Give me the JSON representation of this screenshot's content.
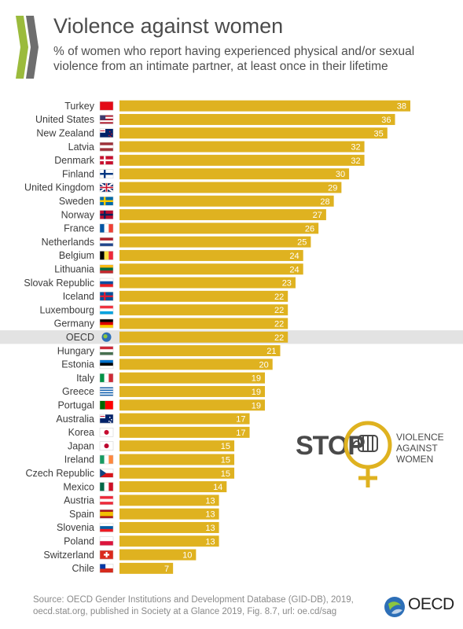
{
  "header": {
    "title": "Violence against women",
    "subtitle": "% of women who report having experienced physical and/or sexual violence from an intimate partner, at least once in their lifetime"
  },
  "badge": {
    "stop": "STOP",
    "line1": "VIOLENCE",
    "line2": "AGAINST",
    "line3": "WOMEN"
  },
  "footer": {
    "source_line1": "Source: OECD Gender Institutions and Development Database (GID-DB), 2019,",
    "source_line2": "oecd.stat.org, published in Society at a Glance 2019, Fig. 8.7, url: oe.cd/sag",
    "brand": "OECD"
  },
  "colors": {
    "bar": "#DFB220",
    "highlight_row": "#E3E3E3",
    "text": "#3C3C3C"
  },
  "chart_data": {
    "type": "bar",
    "orientation": "horizontal",
    "highlight": "OECD",
    "categories": [
      "Turkey",
      "United States",
      "New Zealand",
      "Latvia",
      "Denmark",
      "Finland",
      "United Kingdom",
      "Sweden",
      "Norway",
      "France",
      "Netherlands",
      "Belgium",
      "Lithuania",
      "Slovak Republic",
      "Iceland",
      "Luxembourg",
      "Germany",
      "OECD",
      "Hungary",
      "Estonia",
      "Italy",
      "Greece",
      "Portugal",
      "Australia",
      "Korea",
      "Japan",
      "Ireland",
      "Czech Republic",
      "Mexico",
      "Austria",
      "Spain",
      "Slovenia",
      "Poland",
      "Switzerland",
      "Chile"
    ],
    "values": [
      38,
      36,
      35,
      32,
      32,
      30,
      29,
      28,
      27,
      26,
      25,
      24,
      24,
      23,
      22,
      22,
      22,
      22,
      21,
      20,
      19,
      19,
      19,
      17,
      17,
      15,
      15,
      15,
      14,
      13,
      13,
      13,
      13,
      10,
      7
    ],
    "value_labels": [
      "38",
      "36",
      "35",
      "32",
      "32",
      "30",
      "29",
      "28",
      "27",
      "26",
      "25",
      "24",
      "24",
      "23",
      "22",
      "22",
      "22",
      "22",
      "21",
      "20",
      "19",
      "19",
      "19",
      "17",
      "17",
      "15",
      "15",
      "15",
      "14",
      "13",
      "13",
      "13",
      "13",
      "10",
      "7"
    ],
    "xlim": [
      0,
      38
    ]
  }
}
